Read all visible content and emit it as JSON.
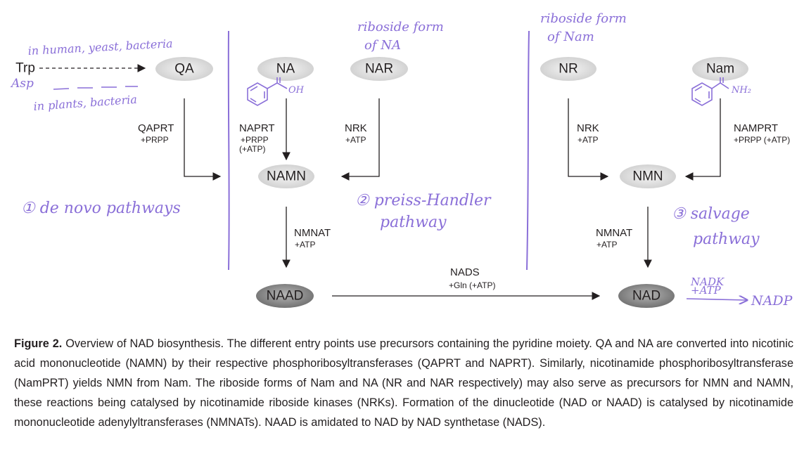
{
  "diagram": {
    "nodes": {
      "trp": "Trp",
      "asp": "Asp",
      "qa": "QA",
      "na": "NA",
      "nar": "NAR",
      "namn": "NAMN",
      "naad": "NAAD",
      "nr": "NR",
      "nam": "Nam",
      "nmn": "NMN",
      "nad": "NAD"
    },
    "enzymes": {
      "qaprt": "QAPRT",
      "qaprt_cofactor": "+PRPP",
      "naprt": "NAPRT",
      "naprt_cofactor_1": "+PRPP",
      "naprt_cofactor_2": "(+ATP)",
      "nrk_left": "NRK",
      "nrk_left_cofactor": "+ATP",
      "nmnat_left": "NMNAT",
      "nmnat_left_cofactor": "+ATP",
      "nads": "NADS",
      "nads_cofactor": "+Gln (+ATP)",
      "nrk_right": "NRK",
      "nrk_right_cofactor": "+ATP",
      "nmnat_right": "NMNAT",
      "nmnat_right_cofactor": "+ATP",
      "namprt": "NAMPRT",
      "namprt_cofactor": "+PRPP (+ATP)"
    },
    "handwritten": {
      "human_yeast_bacteria": "in human, yeast, bacteria",
      "asp": "Asp",
      "plants_bacteria": "in plants, bacteria",
      "de_novo": "① de novo pathways",
      "preiss_handler_1": "② preiss-Handler",
      "preiss_handler_2": "pathway",
      "salvage_1": "③ salvage",
      "salvage_2": "pathway",
      "riboside_na_1": "riboside form",
      "riboside_na_2": "of NA",
      "riboside_nam_1": "riboside form",
      "riboside_nam_2": "of Nam",
      "oh": "OH",
      "nh2": "NH₂",
      "nadk": "NADK",
      "nadk_atp": "+ATP",
      "nadp": "NADP"
    },
    "colors": {
      "node_light": "#d9d9d9",
      "node_dark": "#777777",
      "line": "#231f20",
      "handwriting": "#8a6fd8"
    }
  },
  "caption": {
    "label": "Figure 2.",
    "text": " Overview of NAD biosynthesis. The different entry points use precursors containing the pyridine moiety. QA and NA are converted into nicotinic acid mononucleotide (NAMN) by their respective phosphoribosyltransferases (QAPRT and NAPRT). Similarly, nicotinamide phosphoribosyltransferase (NamPRT) yields NMN from Nam. The riboside forms of Nam and NA (NR and NAR respectively) may also serve as precursors for NMN and NAMN, these reactions being catalysed by nicotinamide riboside kinases (NRKs). Formation of the dinucleotide (NAD or NAAD) is catalysed by nicotinamide mononucleotide adenylyltransferases (NMNATs). NAAD is amidated to NAD by NAD synthetase (NADS)."
  }
}
